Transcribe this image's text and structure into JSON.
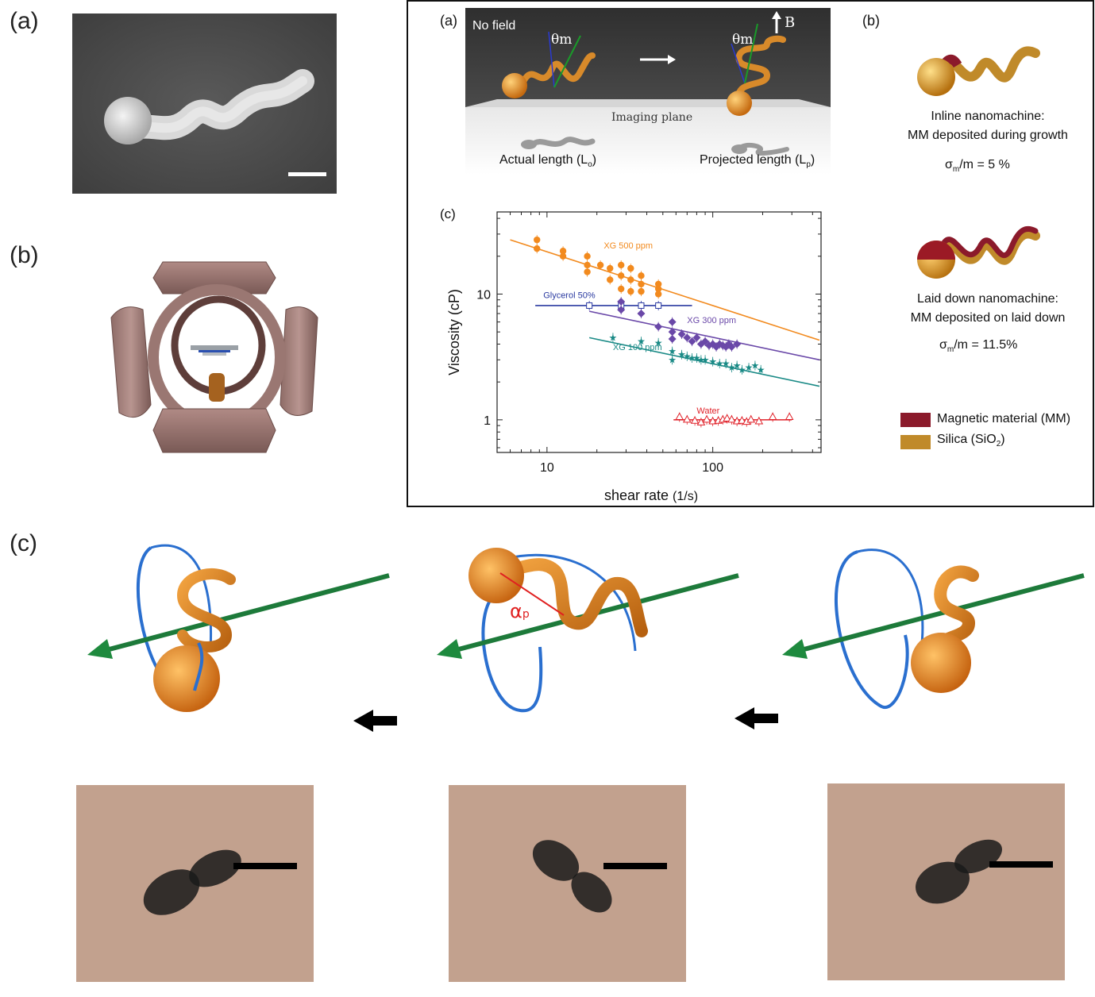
{
  "figure_labels": {
    "left_a": "(a)",
    "left_b": "(b)",
    "bottom_c": "(c)"
  },
  "inset": {
    "label_a": "(a)",
    "label_b": "(b)",
    "label_c": "(c)",
    "no_field": "No field",
    "theta_left": "θm",
    "theta_right": "θm",
    "b_field": "B",
    "imaging_plane": "Imaging plane",
    "actual_length": "Actual length (L",
    "actual_length_sub": "o",
    "projected_length": "Projected length (L",
    "projected_length_sub": "p",
    "inline_title": "Inline nanomachine:",
    "inline_desc": "MM deposited during growth",
    "inline_sigma": "σ",
    "inline_sigma_sub": "m",
    "inline_sigma_val": "/m  =  5 %",
    "laid_title": "Laid down nanomachine:",
    "laid_desc": "MM deposited on laid down",
    "laid_sigma": "σ",
    "laid_sigma_sub": "m",
    "laid_sigma_val": "/m  =  11.5%",
    "legend_mm": "Magnetic material (MM)",
    "legend_silica": "Silica (SiO",
    "legend_silica_sub": "2",
    "color_mm": "#8b1a2b",
    "color_silica": "#c08a2a"
  },
  "chart_data": {
    "type": "scatter",
    "xlabel": "shear rate",
    "xlabel_unit": "(1/s)",
    "ylabel": "Viscosity (cP)",
    "x_scale": "log",
    "y_scale": "log",
    "xlim": [
      5,
      450
    ],
    "ylim": [
      0.55,
      45
    ],
    "x_ticks": [
      10,
      100
    ],
    "y_ticks": [
      1,
      10
    ],
    "series": [
      {
        "name": "XG 500 ppm",
        "color": "#f28a1e",
        "marker": "circle",
        "points": [
          [
            8.7,
            27
          ],
          [
            8.7,
            23
          ],
          [
            12.5,
            22
          ],
          [
            12.5,
            20
          ],
          [
            17.5,
            20
          ],
          [
            17.5,
            17
          ],
          [
            17.5,
            15
          ],
          [
            21,
            17
          ],
          [
            24,
            16
          ],
          [
            24,
            13
          ],
          [
            28,
            17
          ],
          [
            28,
            14
          ],
          [
            28,
            11
          ],
          [
            32,
            16
          ],
          [
            32,
            13
          ],
          [
            32,
            10.5
          ],
          [
            37,
            14
          ],
          [
            37,
            12
          ],
          [
            37,
            10.5
          ],
          [
            47,
            12
          ],
          [
            47,
            11
          ],
          [
            47,
            10
          ]
        ],
        "fit": [
          [
            6,
            27
          ],
          [
            440,
            4.3
          ]
        ]
      },
      {
        "name": "Glycerol 50%",
        "color": "#2a3aa0",
        "marker": "square-open",
        "points": [
          [
            18,
            8.1
          ],
          [
            28,
            8.1
          ],
          [
            37,
            8.1
          ],
          [
            47,
            8.1
          ]
        ],
        "fit": [
          [
            8.5,
            8.1
          ],
          [
            75,
            8.1
          ]
        ]
      },
      {
        "name": "XG 300 ppm",
        "color": "#6a48a8",
        "marker": "diamond",
        "points": [
          [
            28,
            8.7
          ],
          [
            28,
            7.5
          ],
          [
            37,
            7.0
          ],
          [
            47,
            5.5
          ],
          [
            57,
            6.0
          ],
          [
            57,
            5.0
          ],
          [
            57,
            4.4
          ],
          [
            65,
            4.8
          ],
          [
            70,
            4.5
          ],
          [
            75,
            4.2
          ],
          [
            80,
            4.5
          ],
          [
            85,
            4.0
          ],
          [
            90,
            4.2
          ],
          [
            95,
            3.9
          ],
          [
            100,
            4.0
          ],
          [
            105,
            3.8
          ],
          [
            110,
            4.0
          ],
          [
            115,
            3.9
          ],
          [
            120,
            3.8
          ],
          [
            125,
            4.0
          ],
          [
            130,
            3.8
          ],
          [
            140,
            4.0
          ]
        ],
        "fit": [
          [
            18,
            7.3
          ],
          [
            440,
            3.0
          ]
        ]
      },
      {
        "name": "XG 100 ppm",
        "color": "#1a8a86",
        "marker": "star",
        "points": [
          [
            25,
            4.5
          ],
          [
            37,
            4.2
          ],
          [
            47,
            4.1
          ],
          [
            57,
            3.5
          ],
          [
            57,
            3.0
          ],
          [
            65,
            3.3
          ],
          [
            70,
            3.2
          ],
          [
            75,
            3.1
          ],
          [
            80,
            3.1
          ],
          [
            85,
            3.0
          ],
          [
            90,
            3.0
          ],
          [
            100,
            2.9
          ],
          [
            110,
            2.8
          ],
          [
            120,
            2.8
          ],
          [
            130,
            2.6
          ],
          [
            140,
            2.7
          ],
          [
            150,
            2.5
          ],
          [
            165,
            2.6
          ],
          [
            180,
            2.7
          ],
          [
            195,
            2.5
          ]
        ],
        "fit": [
          [
            18,
            4.5
          ],
          [
            440,
            1.85
          ]
        ]
      },
      {
        "name": "Water",
        "color": "#e0222a",
        "marker": "triangle-open",
        "points": [
          [
            63,
            1.05
          ],
          [
            70,
            1.0
          ],
          [
            78,
            0.98
          ],
          [
            85,
            0.95
          ],
          [
            92,
            1.0
          ],
          [
            100,
            0.97
          ],
          [
            108,
            0.98
          ],
          [
            115,
            1.0
          ],
          [
            122,
            1.02
          ],
          [
            130,
            1.0
          ],
          [
            140,
            0.97
          ],
          [
            150,
            0.98
          ],
          [
            160,
            0.96
          ],
          [
            170,
            1.0
          ],
          [
            190,
            0.97
          ],
          [
            230,
            1.05
          ],
          [
            290,
            1.05
          ]
        ],
        "fit": [
          [
            58,
            1.0
          ],
          [
            300,
            1.0
          ]
        ]
      }
    ]
  }
}
